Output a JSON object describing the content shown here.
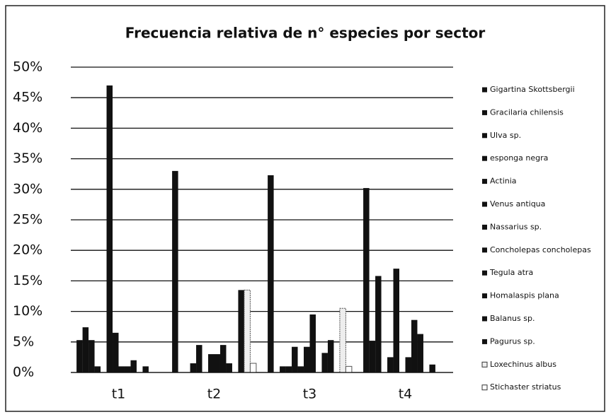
{
  "chart_data": {
    "type": "bar",
    "title": "Frecuencia relativa de n° especies por sector",
    "categories": [
      "t1",
      "t2",
      "t3",
      "t4"
    ],
    "ylim": [
      0,
      50
    ],
    "yticks": [
      {
        "value": 0,
        "label": "0%"
      },
      {
        "value": 5,
        "label": "5%"
      },
      {
        "value": 10,
        "label": "10%"
      },
      {
        "value": 15,
        "label": "15%"
      },
      {
        "value": 20,
        "label": "20%"
      },
      {
        "value": 25,
        "label": "25%"
      },
      {
        "value": 30,
        "label": "30%"
      },
      {
        "value": 35,
        "label": "35%"
      },
      {
        "value": 40,
        "label": "40%"
      },
      {
        "value": 45,
        "label": "45%"
      },
      {
        "value": 50,
        "label": "50%"
      }
    ],
    "grid": true,
    "legend": "right",
    "series": [
      {
        "name": "Gigartina Skottsbergii",
        "color": "#111111",
        "values": [
          5.3,
          33,
          32.3,
          30.2
        ]
      },
      {
        "name": "Gracilaria chilensis",
        "color": "#111111",
        "values": [
          7.4,
          0,
          0,
          5.2
        ]
      },
      {
        "name": "Ulva sp.",
        "color": "#111111",
        "values": [
          5.3,
          0,
          1,
          15.8
        ]
      },
      {
        "name": "esponga negra",
        "color": "#111111",
        "values": [
          1,
          1.5,
          1,
          0
        ]
      },
      {
        "name": "Actinia",
        "color": "#111111",
        "values": [
          0,
          4.5,
          4.2,
          2.5
        ]
      },
      {
        "name": "Venus antiqua",
        "color": "#111111",
        "values": [
          47,
          0,
          1,
          17
        ]
      },
      {
        "name": "Nassarius sp.",
        "color": "#111111",
        "values": [
          6.5,
          3,
          4.2,
          0
        ]
      },
      {
        "name": "Concholepas concholepas",
        "color": "#111111",
        "values": [
          1,
          3,
          9.5,
          2.5
        ]
      },
      {
        "name": "Tegula atra",
        "color": "#111111",
        "values": [
          1,
          4.5,
          0,
          8.6
        ]
      },
      {
        "name": "Homalaspis plana",
        "color": "#111111",
        "values": [
          2,
          1.5,
          3.2,
          6.3
        ]
      },
      {
        "name": "Balanus sp.",
        "color": "#111111",
        "values": [
          0,
          0,
          5.3,
          0
        ]
      },
      {
        "name": "Pagurus sp.",
        "color": "#111111",
        "values": [
          1,
          13.5,
          0,
          1.3
        ]
      },
      {
        "name": "Loxechinus albus",
        "color": "#eeeeee",
        "values": [
          0,
          13.5,
          10.5,
          0
        ]
      },
      {
        "name": "Stichaster striatus",
        "color": "#ffffff",
        "values": [
          0,
          1.5,
          1,
          0
        ]
      }
    ]
  }
}
